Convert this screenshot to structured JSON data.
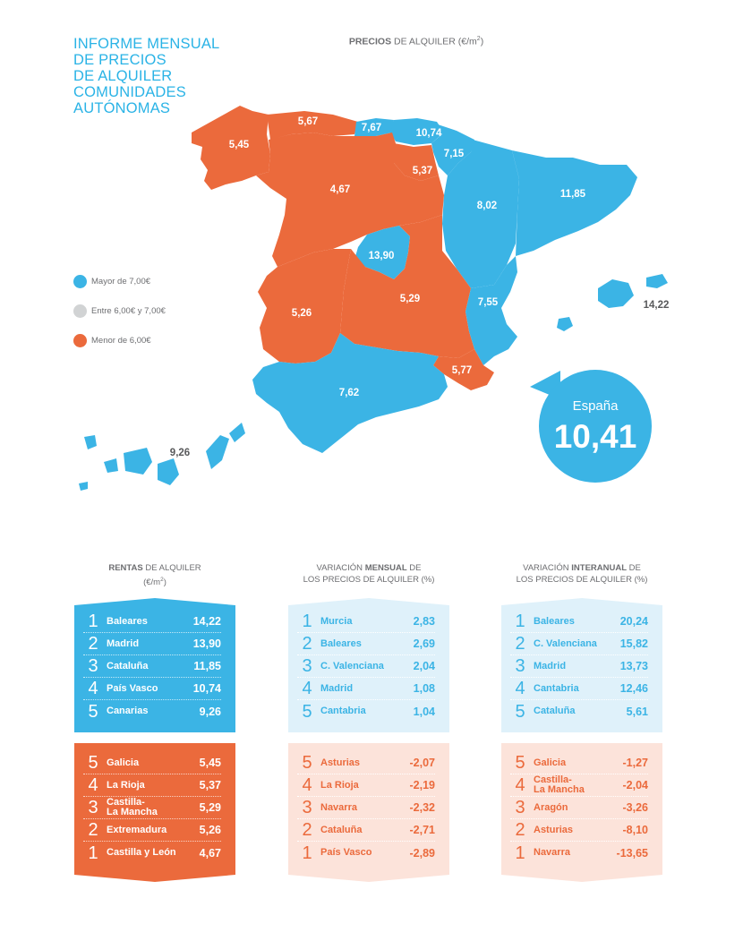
{
  "title": [
    "INFORME MENSUAL",
    "DE PRECIOS",
    "DE ALQUILER",
    "COMUNIDADES",
    "AUTÓNOMAS"
  ],
  "map_title": {
    "bold": "PRECIOS",
    "rest": " DE ALQUILER (€/m",
    "sup": "2",
    "end": ")"
  },
  "legend": [
    {
      "label": "Mayor de 7,00€",
      "color": "#3bb4e5"
    },
    {
      "label": "Entre 6,00€ y 7,00€",
      "color": "#d1d3d4"
    },
    {
      "label": "Menor de 6,00€",
      "color": "#eb6a3c"
    }
  ],
  "map_values": {
    "galicia": "5,45",
    "asturias": "5,67",
    "cantabria": "7,67",
    "pais_vasco": "10,74",
    "navarra": "7,15",
    "la_rioja": "5,37",
    "aragon": "8,02",
    "cataluna": "11,85",
    "castilla_leon": "4,67",
    "madrid": "13,90",
    "castilla_la_mancha": "5,29",
    "extremadura": "5,26",
    "c_valenciana": "7,55",
    "murcia": "5,77",
    "andalucia": "7,62",
    "baleares": "14,22",
    "canarias": "9,26"
  },
  "national": {
    "label": "España",
    "value": "10,41"
  },
  "panels": [
    {
      "title_bold": "RENTAS",
      "title_rest": " DE ALQUILER",
      "title_line2": "(€/m",
      "title_sup": "2",
      "title_end": ")",
      "top": [
        {
          "rank": "1",
          "name": "Baleares",
          "value": "14,22"
        },
        {
          "rank": "2",
          "name": "Madrid",
          "value": "13,90"
        },
        {
          "rank": "3",
          "name": "Cataluña",
          "value": "11,85"
        },
        {
          "rank": "4",
          "name": "País Vasco",
          "value": "10,74"
        },
        {
          "rank": "5",
          "name": "Canarias",
          "value": "9,26"
        }
      ],
      "bottom": [
        {
          "rank": "5",
          "name": "Galicia",
          "value": "5,45"
        },
        {
          "rank": "4",
          "name": "La Rioja",
          "value": "5,37"
        },
        {
          "rank": "3",
          "name": "Castilla-\nLa Mancha",
          "value": "5,29"
        },
        {
          "rank": "2",
          "name": "Extremadura",
          "value": "5,26"
        },
        {
          "rank": "1",
          "name": "Castilla y León",
          "value": "4,67"
        }
      ]
    },
    {
      "title_pre": "VARIACIÓN ",
      "title_bold": "MENSUAL",
      "title_rest": " DE",
      "title_line2": "LOS PRECIOS DE ALQUILER (%)",
      "top": [
        {
          "rank": "1",
          "name": "Murcia",
          "value": "2,83"
        },
        {
          "rank": "2",
          "name": "Baleares",
          "value": "2,69"
        },
        {
          "rank": "3",
          "name": "C. Valenciana",
          "value": "2,04"
        },
        {
          "rank": "4",
          "name": "Madrid",
          "value": "1,08"
        },
        {
          "rank": "5",
          "name": "Cantabria",
          "value": "1,04"
        }
      ],
      "bottom": [
        {
          "rank": "5",
          "name": "Asturias",
          "value": "-2,07"
        },
        {
          "rank": "4",
          "name": "La Rioja",
          "value": "-2,19"
        },
        {
          "rank": "3",
          "name": "Navarra",
          "value": "-2,32"
        },
        {
          "rank": "2",
          "name": "Cataluña",
          "value": "-2,71"
        },
        {
          "rank": "1",
          "name": "País Vasco",
          "value": "-2,89"
        }
      ]
    },
    {
      "title_pre": "VARIACIÓN ",
      "title_bold": "INTERANUAL",
      "title_rest": " DE",
      "title_line2": "LOS PRECIOS DE ALQUILER (%)",
      "top": [
        {
          "rank": "1",
          "name": "Baleares",
          "value": "20,24"
        },
        {
          "rank": "2",
          "name": "C. Valenciana",
          "value": "15,82"
        },
        {
          "rank": "3",
          "name": "Madrid",
          "value": "13,73"
        },
        {
          "rank": "4",
          "name": "Cantabria",
          "value": "12,46"
        },
        {
          "rank": "5",
          "name": "Cataluña",
          "value": "5,61"
        }
      ],
      "bottom": [
        {
          "rank": "5",
          "name": "Galicia",
          "value": "-1,27"
        },
        {
          "rank": "4",
          "name": "Castilla-\nLa Mancha",
          "value": "-2,04"
        },
        {
          "rank": "3",
          "name": "Aragón",
          "value": "-3,26"
        },
        {
          "rank": "2",
          "name": "Asturias",
          "value": "-8,10"
        },
        {
          "rank": "1",
          "name": "Navarra",
          "value": "-13,65"
        }
      ]
    }
  ]
}
